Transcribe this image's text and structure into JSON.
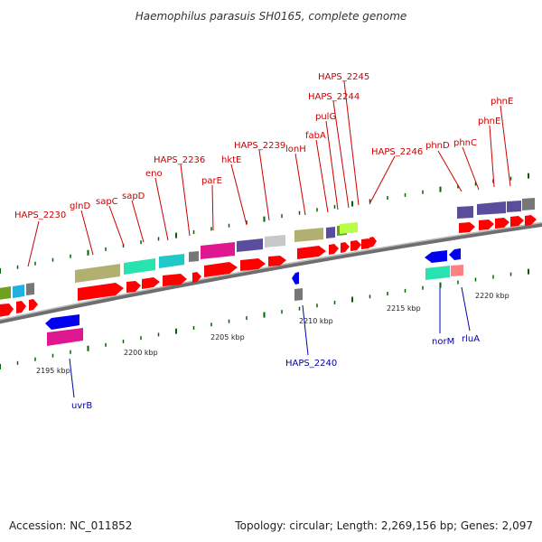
{
  "title": "Haemophilus parasuis SH0165, complete genome",
  "footer": {
    "accession": "Accession: NC_011852",
    "stats": "Topology: circular; Length: 2,269,156 bp; Genes: 2,097"
  },
  "colors": {
    "backbone": "#8a8a8a",
    "forward_label": "#cc0000",
    "reverse_label": "#0000aa",
    "gene_arrow_fwd": "#ff0000",
    "gene_arrow_rev": "#0000ee",
    "tick": "#006600"
  },
  "scale": {
    "unit": "kbp",
    "labels": [
      "2195 kbp",
      "2200 kbp",
      "2205 kbp",
      "2210 kbp",
      "2215 kbp",
      "2220 kbp"
    ]
  },
  "forward_genes": [
    {
      "name": "HAPS_2230"
    },
    {
      "name": "glnD"
    },
    {
      "name": "sapC"
    },
    {
      "name": "sapD"
    },
    {
      "name": "eno"
    },
    {
      "name": "HAPS_2236"
    },
    {
      "name": "parE"
    },
    {
      "name": "hktE"
    },
    {
      "name": "HAPS_2239"
    },
    {
      "name": "lonH"
    },
    {
      "name": "fabA"
    },
    {
      "name": "pulG"
    },
    {
      "name": "HAPS_2244"
    },
    {
      "name": "HAPS_2245"
    },
    {
      "name": "HAPS_2246"
    },
    {
      "name": "phnD"
    },
    {
      "name": "phnC"
    },
    {
      "name": "phnE"
    },
    {
      "name": "phnE"
    }
  ],
  "reverse_genes": [
    {
      "name": "uvrB"
    },
    {
      "name": "HAPS_2240"
    },
    {
      "name": "norM"
    },
    {
      "name": "rluA"
    }
  ],
  "cog_colors": [
    "#b2b070",
    "#26e3b0",
    "#20c8c8",
    "#e01890",
    "#5a4e9c",
    "#c8c8c8",
    "#8a8a8a",
    "#6fa020",
    "#b6ff44",
    "#22b0e0",
    "#ff8080"
  ]
}
